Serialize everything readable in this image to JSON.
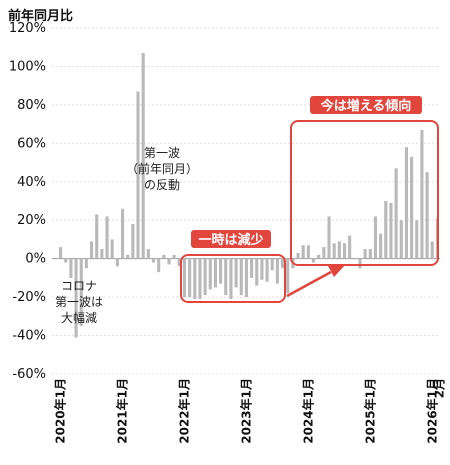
{
  "chart_data": {
    "type": "bar",
    "ylabel": "前年同月比",
    "ylim": [
      -60,
      120
    ],
    "yticks": [
      "120%",
      "100%",
      "80%",
      "60%",
      "40%",
      "20%",
      "0%",
      "-20%",
      "-40%",
      "-60%"
    ],
    "ytick_values": [
      120,
      100,
      80,
      60,
      40,
      20,
      0,
      -20,
      -40,
      -60
    ],
    "xtick_labels": [
      "2020年1月",
      "2021年1月",
      "2022年1月",
      "2023年1月",
      "2024年1月",
      "2025年1月",
      "2026年1月",
      "2月"
    ],
    "xtick_indices": [
      0,
      12,
      24,
      36,
      48,
      60,
      72,
      73
    ],
    "grid": "horizontal",
    "bar_color": "#b9b9b9",
    "highlight_color": "#e2453c",
    "start": "2020-01",
    "categories": [
      "2020-01",
      "2020-02",
      "2020-03",
      "2020-04",
      "2020-05",
      "2020-06",
      "2020-07",
      "2020-08",
      "2020-09",
      "2020-10",
      "2020-11",
      "2020-12",
      "2021-01",
      "2021-02",
      "2021-03",
      "2021-04",
      "2021-05",
      "2021-06",
      "2021-07",
      "2021-08",
      "2021-09",
      "2021-10",
      "2021-11",
      "2021-12",
      "2022-01",
      "2022-02",
      "2022-03",
      "2022-04",
      "2022-05",
      "2022-06",
      "2022-07",
      "2022-08",
      "2022-09",
      "2022-10",
      "2022-11",
      "2022-12",
      "2023-01",
      "2023-02",
      "2023-03",
      "2023-04",
      "2023-05",
      "2023-06",
      "2023-07",
      "2023-08",
      "2023-09",
      "2023-10",
      "2023-11",
      "2023-12",
      "2024-01",
      "2024-02",
      "2024-03",
      "2024-04",
      "2024-05",
      "2024-06",
      "2024-07",
      "2024-08",
      "2024-09",
      "2024-10",
      "2024-11",
      "2024-12",
      "2025-01",
      "2025-02",
      "2025-03",
      "2025-04",
      "2025-05",
      "2025-06",
      "2025-07",
      "2025-08",
      "2025-09",
      "2025-10",
      "2025-11",
      "2025-12",
      "2026-01",
      "2026-02"
    ],
    "values": [
      6,
      -2,
      -10,
      -41,
      -35,
      -5,
      9,
      23,
      5,
      22,
      10,
      -4,
      26,
      2,
      18,
      87,
      107,
      5,
      -2,
      -7,
      2,
      -3,
      2,
      -4,
      -20,
      -20,
      -21,
      -21,
      -19,
      -16,
      -15,
      -13,
      -19,
      -21,
      -15,
      -19,
      -20,
      -10,
      -14,
      -11,
      -12,
      -6,
      -13,
      -5,
      -18,
      -5,
      3,
      7,
      7,
      -2,
      2,
      6,
      22,
      8,
      9,
      8,
      12,
      0,
      -5,
      5,
      5,
      22,
      13,
      30,
      29,
      47,
      20,
      58,
      53,
      20,
      67,
      45,
      9,
      21
    ],
    "annotations": {
      "unit_label": "前年同月比",
      "covid_first_wave_drop": [
        "コロナ",
        "第一波は",
        "大幅減"
      ],
      "first_wave_yoy": [
        "第一波",
        "（前年同月）",
        "の反動"
      ],
      "temporary_drop": "一時は減少",
      "increasing_trend": "今は増える傾向"
    }
  }
}
